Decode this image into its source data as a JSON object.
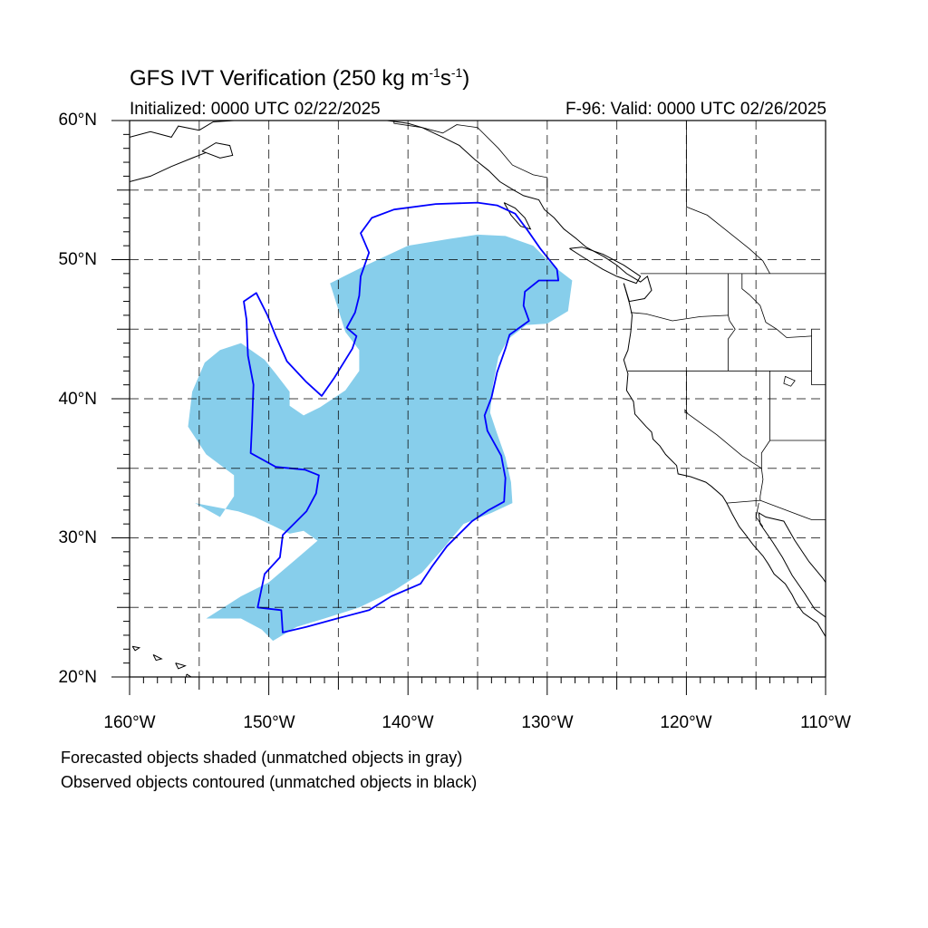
{
  "title": {
    "main": "GFS IVT Verification (250 kg m",
    "exp1": "-1",
    "mid": "s",
    "exp2": "-1",
    "close": ")"
  },
  "init_text": "Initialized: 0000 UTC 02/22/2025",
  "valid_text": "F-96: Valid: 0000 UTC 02/26/2025",
  "lat_labels": [
    "60°N",
    "50°N",
    "40°N",
    "30°N",
    "20°N"
  ],
  "lon_labels": [
    "160°W",
    "150°W",
    "140°W",
    "130°W",
    "120°W",
    "110°W"
  ],
  "captions": [
    "Forecasted objects shaded (unmatched objects in gray)",
    "Observed objects contoured (unmatched objects in black)"
  ],
  "colors": {
    "forecast_fill": "#87ceeb",
    "observed_contour": "#0000ff",
    "grid": "#000000",
    "coast": "#000000"
  },
  "map": {
    "lon_min": -160,
    "lon_max": -110,
    "lat_min": 20,
    "lat_max": 60,
    "grid_step_deg": 5,
    "grid_style": "dashed",
    "projection": "cylindrical-equidistant"
  },
  "forecast_object": {
    "note_color": "matched",
    "outline_lonlat": [
      [
        -145.6,
        48.3
      ],
      [
        -143,
        49.6
      ],
      [
        -140,
        51
      ],
      [
        -137,
        51.5
      ],
      [
        -135,
        51.8
      ],
      [
        -133,
        51.7
      ],
      [
        -131,
        51
      ],
      [
        -129.5,
        49.5
      ],
      [
        -128.2,
        48.5
      ],
      [
        -128.5,
        46.3
      ],
      [
        -130,
        45.4
      ],
      [
        -131.5,
        45.3
      ],
      [
        -132.8,
        44.3
      ],
      [
        -133.5,
        43
      ],
      [
        -133.9,
        41
      ],
      [
        -134.1,
        39
      ],
      [
        -133.6,
        37.5
      ],
      [
        -133,
        35.8
      ],
      [
        -132.6,
        34
      ],
      [
        -132.5,
        32.5
      ],
      [
        -134,
        31.8
      ],
      [
        -136,
        31
      ],
      [
        -137.5,
        29.2
      ],
      [
        -139,
        27.5
      ],
      [
        -141,
        26.2
      ],
      [
        -143.5,
        25
      ],
      [
        -146,
        24.2
      ],
      [
        -148,
        23.6
      ],
      [
        -149.7,
        22.6
      ],
      [
        -150.5,
        23.4
      ],
      [
        -152,
        24.2
      ],
      [
        -154.5,
        24.2
      ],
      [
        -152,
        25.8
      ],
      [
        -150,
        26.8
      ],
      [
        -148,
        28.5
      ],
      [
        -146.5,
        29.8
      ],
      [
        -147.5,
        30.5
      ],
      [
        -148.5,
        30.3
      ],
      [
        -151,
        31.5
      ],
      [
        -152.2,
        31.9
      ],
      [
        -155.3,
        32.5
      ],
      [
        -153.5,
        31.5
      ],
      [
        -152.5,
        33
      ],
      [
        -152.5,
        34.5
      ],
      [
        -154.5,
        36
      ],
      [
        -155.8,
        38
      ],
      [
        -155.5,
        40.5
      ],
      [
        -154.6,
        42.6
      ],
      [
        -153.5,
        43.5
      ],
      [
        -152,
        44
      ],
      [
        -150.3,
        42.8
      ],
      [
        -149.5,
        41.8
      ],
      [
        -148.5,
        40.5
      ],
      [
        -148.5,
        39.5
      ],
      [
        -147.5,
        38.8
      ],
      [
        -146.3,
        39.4
      ],
      [
        -144.5,
        40.6
      ],
      [
        -143.5,
        42
      ],
      [
        -143.5,
        43.5
      ],
      [
        -144.5,
        44.8
      ],
      [
        -145.6,
        48.3
      ]
    ]
  },
  "observed_object": {
    "outline_lonlat": [
      [
        -143.4,
        51.9
      ],
      [
        -142.6,
        53
      ],
      [
        -141,
        53.6
      ],
      [
        -138,
        54
      ],
      [
        -135,
        54.1
      ],
      [
        -133.6,
        53.9
      ],
      [
        -132.3,
        53.3
      ],
      [
        -131.4,
        52.1
      ],
      [
        -130.5,
        50.8
      ],
      [
        -129.3,
        49.3
      ],
      [
        -129.2,
        48.5
      ],
      [
        -130.6,
        48.5
      ],
      [
        -131.6,
        47.7
      ],
      [
        -131.7,
        46.7
      ],
      [
        -131.3,
        45.6
      ],
      [
        -132.7,
        44.6
      ],
      [
        -133,
        43.6
      ],
      [
        -133.6,
        41.9
      ],
      [
        -134,
        40.1
      ],
      [
        -134.5,
        38.8
      ],
      [
        -134.3,
        37.7
      ],
      [
        -133.3,
        35.9
      ],
      [
        -133,
        34.3
      ],
      [
        -133.1,
        32.6
      ],
      [
        -134.2,
        32
      ],
      [
        -135.4,
        31.2
      ],
      [
        -137.2,
        29.4
      ],
      [
        -138.3,
        27.9
      ],
      [
        -139.1,
        26.7
      ],
      [
        -141.2,
        25.8
      ],
      [
        -142.8,
        24.8
      ],
      [
        -145.1,
        24.2
      ],
      [
        -147.3,
        23.6
      ],
      [
        -149,
        23.2
      ],
      [
        -149.1,
        24.8
      ],
      [
        -150.8,
        25
      ],
      [
        -150.3,
        27.4
      ],
      [
        -149.2,
        28.6
      ],
      [
        -149,
        30.2
      ],
      [
        -147.3,
        31.9
      ],
      [
        -146.6,
        33.2
      ],
      [
        -146.4,
        34.5
      ],
      [
        -147.4,
        34.9
      ],
      [
        -149.5,
        35.1
      ],
      [
        -151.3,
        36.1
      ],
      [
        -151.2,
        38.3
      ],
      [
        -151.1,
        41
      ],
      [
        -151.5,
        43.1
      ],
      [
        -151.6,
        45.7
      ],
      [
        -151.8,
        47
      ],
      [
        -150.9,
        47.6
      ],
      [
        -150.1,
        46
      ],
      [
        -149.5,
        44.5
      ],
      [
        -148.7,
        42.7
      ],
      [
        -147.3,
        41.2
      ],
      [
        -146.2,
        40.2
      ],
      [
        -145.3,
        41.5
      ],
      [
        -144,
        43.6
      ],
      [
        -143.7,
        44.5
      ],
      [
        -144.4,
        45.1
      ],
      [
        -143.8,
        46.2
      ],
      [
        -143.5,
        47.4
      ],
      [
        -143.4,
        48.8
      ],
      [
        -142.8,
        50.5
      ],
      [
        -143.4,
        51.9
      ]
    ]
  },
  "coastlines": [
    {
      "name": "alaska-coast",
      "lonlat": [
        [
          -160,
          58.8
        ],
        [
          -158.5,
          59.2
        ],
        [
          -157,
          58.8
        ],
        [
          -156.5,
          59.6
        ],
        [
          -155,
          59.3
        ],
        [
          -154,
          59.9
        ],
        [
          -152.5,
          60
        ]
      ]
    },
    {
      "name": "alaska-peninsula",
      "lonlat": [
        [
          -160,
          55.6
        ],
        [
          -158.5,
          56
        ],
        [
          -157,
          56.7
        ],
        [
          -155.5,
          57.3
        ],
        [
          -154.5,
          57.7
        ]
      ]
    },
    {
      "name": "kodiak",
      "lonlat": [
        [
          -154.8,
          57.8
        ],
        [
          -153.5,
          57.3
        ],
        [
          -152.6,
          57.5
        ],
        [
          -152.8,
          58.2
        ],
        [
          -153.8,
          58.4
        ],
        [
          -154.8,
          57.8
        ]
      ]
    },
    {
      "name": "southeast-alaska",
      "lonlat": [
        [
          -141.5,
          60
        ],
        [
          -140,
          59.8
        ],
        [
          -139,
          59.5
        ],
        [
          -137.5,
          58.8
        ],
        [
          -136.3,
          58.2
        ],
        [
          -135.2,
          57.2
        ],
        [
          -134.2,
          56.4
        ],
        [
          -133.4,
          55.6
        ],
        [
          -132.4,
          55.0
        ],
        [
          -131.7,
          54.6
        ],
        [
          -130.6,
          54.3
        ],
        [
          -130.2,
          53.6
        ],
        [
          -129.5,
          53.0
        ],
        [
          -128.8,
          52.2
        ],
        [
          -127.9,
          51.5
        ],
        [
          -127.2,
          50.9
        ],
        [
          -125.9,
          50.2
        ],
        [
          -125.0,
          49.6
        ],
        [
          -124.3,
          49.0
        ],
        [
          -123.3,
          48.4
        ],
        [
          -122.8,
          48.8
        ],
        [
          -122.5,
          47.8
        ],
        [
          -123.0,
          47.2
        ],
        [
          -124.1,
          47.0
        ],
        [
          -124.5,
          48.3
        ]
      ]
    },
    {
      "name": "vancouver-island",
      "lonlat": [
        [
          -128.4,
          50.8
        ],
        [
          -127.3,
          50.1
        ],
        [
          -126.0,
          49.3
        ],
        [
          -125.0,
          48.8
        ],
        [
          -123.6,
          48.3
        ],
        [
          -123.3,
          48.8
        ],
        [
          -124.5,
          49.6
        ],
        [
          -126.0,
          50.4
        ],
        [
          -127.5,
          50.9
        ],
        [
          -128.4,
          50.8
        ]
      ]
    },
    {
      "name": "haida-gwaii",
      "lonlat": [
        [
          -133.1,
          54.1
        ],
        [
          -132.3,
          53.7
        ],
        [
          -131.6,
          53.0
        ],
        [
          -131.2,
          52.2
        ],
        [
          -131.9,
          52.4
        ],
        [
          -132.6,
          53.2
        ],
        [
          -133.1,
          54.1
        ]
      ]
    },
    {
      "name": "us-west-coast",
      "lonlat": [
        [
          -124.5,
          48.3
        ],
        [
          -124.1,
          46.9
        ],
        [
          -123.9,
          46.0
        ],
        [
          -124.0,
          44.8
        ],
        [
          -124.2,
          43.5
        ],
        [
          -124.5,
          42.8
        ],
        [
          -124.2,
          41.8
        ],
        [
          -124.3,
          40.6
        ],
        [
          -123.8,
          39.8
        ],
        [
          -123.7,
          38.9
        ],
        [
          -122.9,
          38.0
        ],
        [
          -122.5,
          37.6
        ],
        [
          -122.4,
          37.1
        ],
        [
          -121.9,
          36.6
        ],
        [
          -121.5,
          36.0
        ],
        [
          -120.7,
          35.2
        ],
        [
          -120.6,
          34.6
        ],
        [
          -119.7,
          34.4
        ],
        [
          -118.6,
          34.0
        ],
        [
          -118.2,
          33.7
        ],
        [
          -117.4,
          33.0
        ],
        [
          -117.1,
          32.5
        ],
        [
          -116.7,
          31.7
        ],
        [
          -116.2,
          30.8
        ],
        [
          -115.8,
          30.3
        ],
        [
          -115.2,
          29.5
        ],
        [
          -114.5,
          28.7
        ],
        [
          -114.1,
          28.1
        ],
        [
          -113.7,
          27.4
        ],
        [
          -112.9,
          26.7
        ],
        [
          -112.4,
          25.9
        ],
        [
          -112.1,
          25.3
        ],
        [
          -111.6,
          24.6
        ],
        [
          -110.6,
          23.9
        ],
        [
          -110.0,
          22.9
        ]
      ]
    },
    {
      "name": "gulf-of-california",
      "lonlat": [
        [
          -110.0,
          24.3
        ],
        [
          -110.8,
          24.9
        ],
        [
          -111.5,
          26.0
        ],
        [
          -112.4,
          27.3
        ],
        [
          -113.1,
          28.6
        ],
        [
          -113.8,
          29.7
        ],
        [
          -114.7,
          31.0
        ],
        [
          -114.8,
          31.8
        ],
        [
          -114.3,
          31.5
        ],
        [
          -113.0,
          31.2
        ],
        [
          -112.2,
          29.8
        ],
        [
          -111.2,
          28.3
        ],
        [
          -110.2,
          27.1
        ],
        [
          -110.0,
          26.8
        ]
      ]
    },
    {
      "name": "hawaii-big",
      "lonlat": [
        [
          -155.9,
          20.2
        ],
        [
          -155.1,
          19.7
        ],
        [
          -154.8,
          19.5
        ],
        [
          -155.6,
          18.9
        ],
        [
          -156.0,
          19.6
        ],
        [
          -155.9,
          20.2
        ]
      ]
    },
    {
      "name": "maui",
      "lonlat": [
        [
          -156.7,
          21.0
        ],
        [
          -156.0,
          20.8
        ],
        [
          -156.5,
          20.6
        ],
        [
          -156.7,
          21.0
        ]
      ]
    },
    {
      "name": "oahu",
      "lonlat": [
        [
          -158.3,
          21.6
        ],
        [
          -157.7,
          21.3
        ],
        [
          -158.1,
          21.2
        ],
        [
          -158.3,
          21.6
        ]
      ]
    },
    {
      "name": "kauai",
      "lonlat": [
        [
          -159.8,
          22.2
        ],
        [
          -159.3,
          22.1
        ],
        [
          -159.6,
          21.9
        ],
        [
          -159.8,
          22.2
        ]
      ]
    }
  ],
  "borders": [
    {
      "name": "us-canada-border",
      "lonlat": [
        [
          -123.3,
          49.0
        ],
        [
          -110,
          49.0
        ]
      ]
    },
    {
      "name": "alaska-canada-border",
      "lonlat": [
        [
          -141,
          60
        ],
        [
          -141,
          59.8
        ],
        [
          -139.0,
          59.5
        ],
        [
          -137.5,
          59.1
        ],
        [
          -136.5,
          59.7
        ],
        [
          -135.0,
          59.5
        ],
        [
          -133.5,
          58.0
        ],
        [
          -132.5,
          56.8
        ],
        [
          -131.0,
          56.1
        ],
        [
          -130.0,
          55.9
        ],
        [
          -130.0,
          54.7
        ]
      ]
    },
    {
      "name": "bc-alberta-border",
      "lonlat": [
        [
          -120,
          60
        ],
        [
          -120,
          53.8
        ],
        [
          -118.5,
          53.2
        ],
        [
          -117.0,
          52.0
        ],
        [
          -115.5,
          50.8
        ],
        [
          -114.5,
          49.9
        ],
        [
          -114.0,
          49.0
        ]
      ]
    },
    {
      "name": "wa-or-border",
      "lonlat": [
        [
          -124.0,
          46.2
        ],
        [
          -122.9,
          46.1
        ],
        [
          -121.0,
          45.6
        ],
        [
          -119.0,
          45.9
        ],
        [
          -117.0,
          46.0
        ]
      ]
    },
    {
      "name": "or-ca-nv-border",
      "lonlat": [
        [
          -124.2,
          42.0
        ],
        [
          -117.0,
          42.0
        ],
        [
          -114.0,
          42.0
        ],
        [
          -111.0,
          42.0
        ]
      ]
    },
    {
      "name": "id-border",
      "lonlat": [
        [
          -117.0,
          49.0
        ],
        [
          -117.0,
          46.0
        ],
        [
          -116.9,
          45.6
        ],
        [
          -116.5,
          45.0
        ],
        [
          -117.0,
          44.3
        ],
        [
          -117.0,
          42.0
        ]
      ]
    },
    {
      "name": "montana-idaho-border",
      "lonlat": [
        [
          -116.0,
          49.0
        ],
        [
          -116.0,
          47.9
        ],
        [
          -115.5,
          47.5
        ],
        [
          -114.7,
          46.7
        ],
        [
          -114.3,
          45.5
        ],
        [
          -113.5,
          45.0
        ],
        [
          -112.8,
          44.4
        ],
        [
          -111.0,
          44.5
        ]
      ]
    },
    {
      "name": "utah-border",
      "lonlat": [
        [
          -111.0,
          45.0
        ],
        [
          -111.0,
          44.5
        ],
        [
          -111.0,
          41.0
        ],
        [
          -110,
          41.0
        ]
      ]
    },
    {
      "name": "ca-nv-border",
      "lonlat": [
        [
          -120.0,
          42.0
        ],
        [
          -120.0,
          39.0
        ],
        [
          -117.8,
          37.4
        ],
        [
          -116.0,
          35.9
        ],
        [
          -114.6,
          35.0
        ]
      ]
    },
    {
      "name": "nv-az-border",
      "lonlat": [
        [
          -114.0,
          42.0
        ],
        [
          -114.0,
          37.0
        ],
        [
          -114.6,
          36.1
        ],
        [
          -114.6,
          35.0
        ]
      ]
    },
    {
      "name": "az-ut-border",
      "lonlat": [
        [
          -114.0,
          37.0
        ],
        [
          -110,
          37.0
        ]
      ]
    },
    {
      "name": "us-mexico-border",
      "lonlat": [
        [
          -117.1,
          32.5
        ],
        [
          -114.7,
          32.7
        ],
        [
          -111.0,
          31.3
        ],
        [
          -110,
          31.3
        ]
      ]
    },
    {
      "name": "ca-az-border",
      "lonlat": [
        [
          -114.6,
          35.0
        ],
        [
          -114.5,
          34.2
        ],
        [
          -114.7,
          33.0
        ],
        [
          -114.7,
          32.7
        ]
      ]
    },
    {
      "name": "baja-mainland",
      "lonlat": [
        [
          -114.8,
          32.5
        ],
        [
          -115.0,
          31.5
        ],
        [
          -114.5,
          30.8
        ]
      ]
    }
  ],
  "lakes": [
    {
      "name": "great-salt-lake",
      "lonlat": [
        [
          -112.9,
          41.6
        ],
        [
          -112.2,
          41.3
        ],
        [
          -112.5,
          40.9
        ],
        [
          -113.0,
          41.1
        ],
        [
          -112.9,
          41.6
        ]
      ]
    },
    {
      "name": "lake-tahoe",
      "lonlat": [
        [
          -120.1,
          39.2
        ],
        [
          -119.95,
          39.0
        ],
        [
          -120.1,
          39.0
        ],
        [
          -120.1,
          39.2
        ]
      ]
    }
  ]
}
